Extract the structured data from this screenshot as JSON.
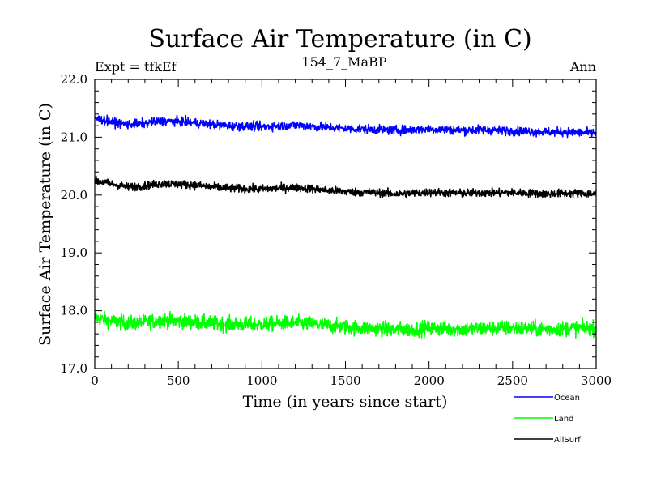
{
  "chart_data": {
    "type": "line",
    "title": "Surface Air Temperature (in C)",
    "subtitle_left": "Expt = tfkEf",
    "subtitle_center": "154_7_MaBP",
    "subtitle_right": "Ann",
    "xlabel": "Time (in years since start)",
    "ylabel": "Surface Air Temperature (in C)",
    "xlim": [
      0,
      3000
    ],
    "ylim": [
      17.0,
      22.0
    ],
    "xticks": [
      0,
      500,
      1000,
      1500,
      2000,
      2500,
      3000
    ],
    "xtick_labels": [
      "0",
      "500",
      "1000",
      "1500",
      "2000",
      "2500",
      "3000"
    ],
    "yticks": [
      17.0,
      18.0,
      19.0,
      20.0,
      21.0,
      22.0
    ],
    "ytick_labels": [
      "17.0",
      "18.0",
      "19.0",
      "20.0",
      "21.0",
      "22.0"
    ],
    "grid": false,
    "legend_position": "bottom-right",
    "series": [
      {
        "name": "Ocean",
        "color": "#0000ff",
        "x": [
          0,
          100,
          200,
          300,
          400,
          500,
          600,
          700,
          800,
          900,
          1000,
          1100,
          1200,
          1300,
          1400,
          1500,
          1600,
          1700,
          1800,
          1900,
          2000,
          2100,
          2200,
          2300,
          2400,
          2500,
          2600,
          2700,
          2800,
          2900,
          3000
        ],
        "values": [
          21.33,
          21.27,
          21.22,
          21.24,
          21.28,
          21.27,
          21.25,
          21.22,
          21.2,
          21.19,
          21.18,
          21.2,
          21.21,
          21.19,
          21.17,
          21.15,
          21.14,
          21.13,
          21.12,
          21.13,
          21.14,
          21.13,
          21.12,
          21.13,
          21.12,
          21.11,
          21.1,
          21.09,
          21.09,
          21.08,
          21.07
        ]
      },
      {
        "name": "Land",
        "color": "#00ff00",
        "x": [
          0,
          100,
          200,
          300,
          400,
          500,
          600,
          700,
          800,
          900,
          1000,
          1100,
          1200,
          1300,
          1400,
          1500,
          1600,
          1700,
          1800,
          1900,
          2000,
          2100,
          2200,
          2300,
          2400,
          2500,
          2600,
          2700,
          2800,
          2900,
          3000
        ],
        "values": [
          17.88,
          17.82,
          17.78,
          17.8,
          17.84,
          17.82,
          17.8,
          17.78,
          17.77,
          17.76,
          17.76,
          17.78,
          17.79,
          17.77,
          17.74,
          17.72,
          17.7,
          17.69,
          17.67,
          17.68,
          17.7,
          17.69,
          17.68,
          17.69,
          17.7,
          17.7,
          17.69,
          17.68,
          17.69,
          17.7,
          17.7
        ]
      },
      {
        "name": "AllSurf",
        "color": "#000000",
        "x": [
          0,
          100,
          200,
          300,
          400,
          500,
          600,
          700,
          800,
          900,
          1000,
          1100,
          1200,
          1300,
          1400,
          1500,
          1600,
          1700,
          1800,
          1900,
          2000,
          2100,
          2200,
          2300,
          2400,
          2500,
          2600,
          2700,
          2800,
          2900,
          3000
        ],
        "values": [
          20.25,
          20.19,
          20.14,
          20.16,
          20.2,
          20.19,
          20.17,
          20.14,
          20.12,
          20.11,
          20.1,
          20.12,
          20.13,
          20.11,
          20.08,
          20.06,
          20.05,
          20.04,
          20.02,
          20.03,
          20.05,
          20.04,
          20.03,
          20.04,
          20.04,
          20.04,
          20.03,
          20.02,
          20.03,
          20.03,
          20.02
        ]
      }
    ]
  }
}
